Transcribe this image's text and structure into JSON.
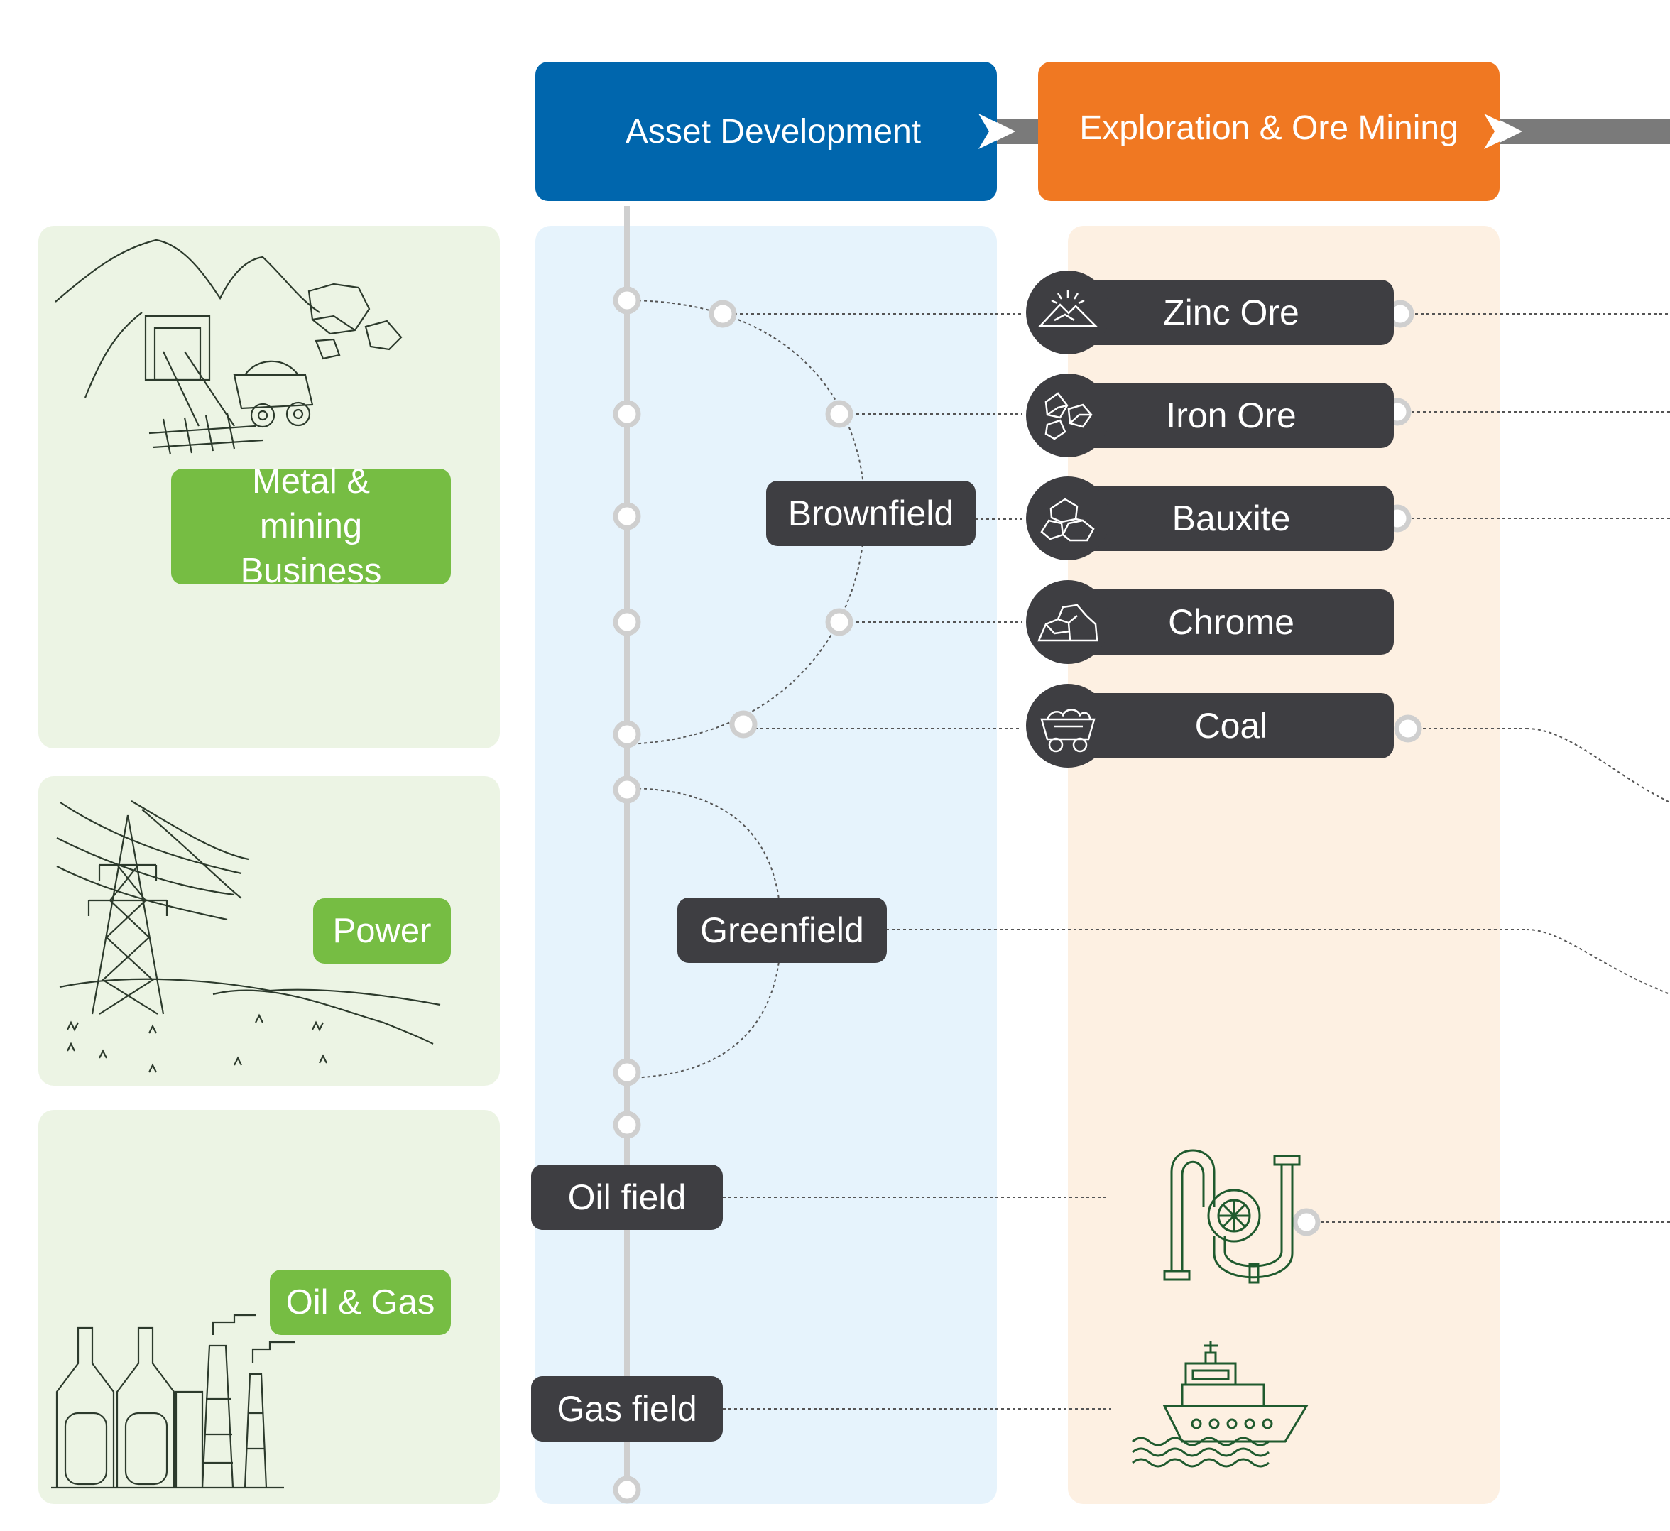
{
  "headers": {
    "asset_development": "Asset Development",
    "exploration_ore_mining": "Exploration & Ore Mining"
  },
  "business": {
    "metal_mining": "Metal & mining Business",
    "power": "Power",
    "oil_gas": "Oil & Gas"
  },
  "fields": {
    "brownfield": "Brownfield",
    "greenfield": "Greenfield",
    "oil_field": "Oil field",
    "gas_field": "Gas field"
  },
  "ores": [
    {
      "label": "Zinc Ore",
      "icon": "mountain-icon"
    },
    {
      "label": "Iron Ore",
      "icon": "ore-chunks-icon"
    },
    {
      "label": "Bauxite",
      "icon": "rock-pile-icon"
    },
    {
      "label": "Chrome",
      "icon": "rock-icon"
    },
    {
      "label": "Coal",
      "icon": "mine-cart-icon"
    }
  ],
  "colors": {
    "asset_header": "#0066ad",
    "exploration_header": "#f07822",
    "green_tag": "#76bd43",
    "dark_pill": "#3e3e42",
    "green_panel": "#ecf4e4",
    "blue_panel": "#e6f3fc",
    "peach_panel": "#fdf0e2",
    "line_art": "#1f5a2e"
  }
}
